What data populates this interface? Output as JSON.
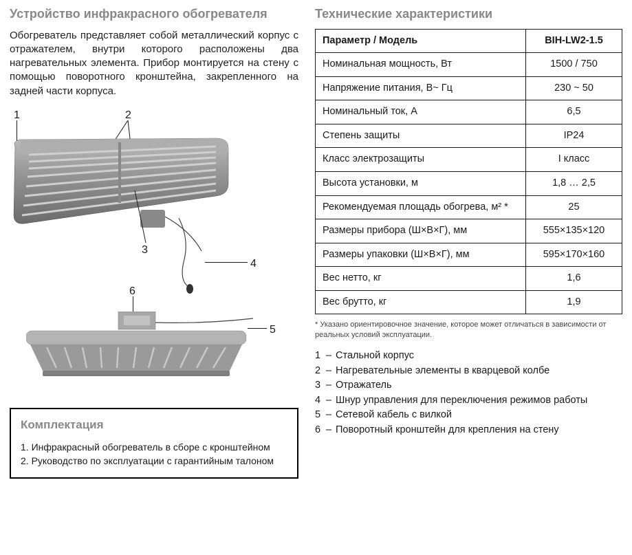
{
  "left": {
    "title": "Устройство инфракрасного обогревателя",
    "description": "Обогреватель представляет собой металлический корпус с отражателем, внутри которого расположены два нагревательных элемента. Прибор монтируется на стену с помощью поворотного кронштейна, закрепленного на задней части корпуса.",
    "callouts": [
      "1",
      "2",
      "3",
      "4",
      "5",
      "6"
    ],
    "box": {
      "title": "Комплектация",
      "items": [
        "1. Инфракрасный обогреватель в сборе с кронштейном",
        "2. Руководство по эксплуатации с гарантийным талоном"
      ]
    }
  },
  "right": {
    "title": "Технические характеристики",
    "table": {
      "header": {
        "param": "Параметр / Модель",
        "model": "BIH-LW2-1.5"
      },
      "rows": [
        {
          "param": "Номинальная мощность, Вт",
          "val": "1500 / 750"
        },
        {
          "param": "Напряжение питания, В~ Гц",
          "val": "230 ~ 50"
        },
        {
          "param": "Номинальный ток, А",
          "val": "6,5"
        },
        {
          "param": "Степень защиты",
          "val": "IP24"
        },
        {
          "param": "Класс электрозащиты",
          "val": "I класс"
        },
        {
          "param": "Высота установки, м",
          "val": "1,8 … 2,5"
        },
        {
          "param": "Рекомендуемая площадь обогрева, м² *",
          "val": "25"
        },
        {
          "param": "Размеры прибора (Ш×В×Г), мм",
          "val": "555×135×120"
        },
        {
          "param": "Размеры упаковки (Ш×В×Г), мм",
          "val": "595×170×160"
        },
        {
          "param": "Вес нетто, кг",
          "val": "1,6"
        },
        {
          "param": "Вес брутто, кг",
          "val": "1,9"
        }
      ]
    },
    "footnote": "* Указано ориентировочное значение, которое может отличаться в зависимости от реальных условий эксплуатации.",
    "legend": [
      {
        "n": "1",
        "t": "Стальной корпус"
      },
      {
        "n": "2",
        "t": "Нагревательные элементы в кварцевой колбе"
      },
      {
        "n": "3",
        "t": "Отражатель"
      },
      {
        "n": "4",
        "t": "Шнур управления для переключения режимов работы"
      },
      {
        "n": "5",
        "t": "Сетевой кабель с вилкой"
      },
      {
        "n": "6",
        "t": "Поворотный кронштейн для крепления на стену"
      }
    ]
  },
  "colors": {
    "title_gray": "#888888",
    "text": "#1a1a1a",
    "heater_body": "#9a9a9a",
    "heater_body_dark": "#6e6e6e",
    "heater_grill": "#b8b8b8",
    "border": "#1a1a1a",
    "bg": "#ffffff",
    "cable": "#444444"
  },
  "fonts": {
    "title_size_pt": 14,
    "body_size_pt": 11,
    "table_size_pt": 11,
    "footnote_size_pt": 8
  }
}
